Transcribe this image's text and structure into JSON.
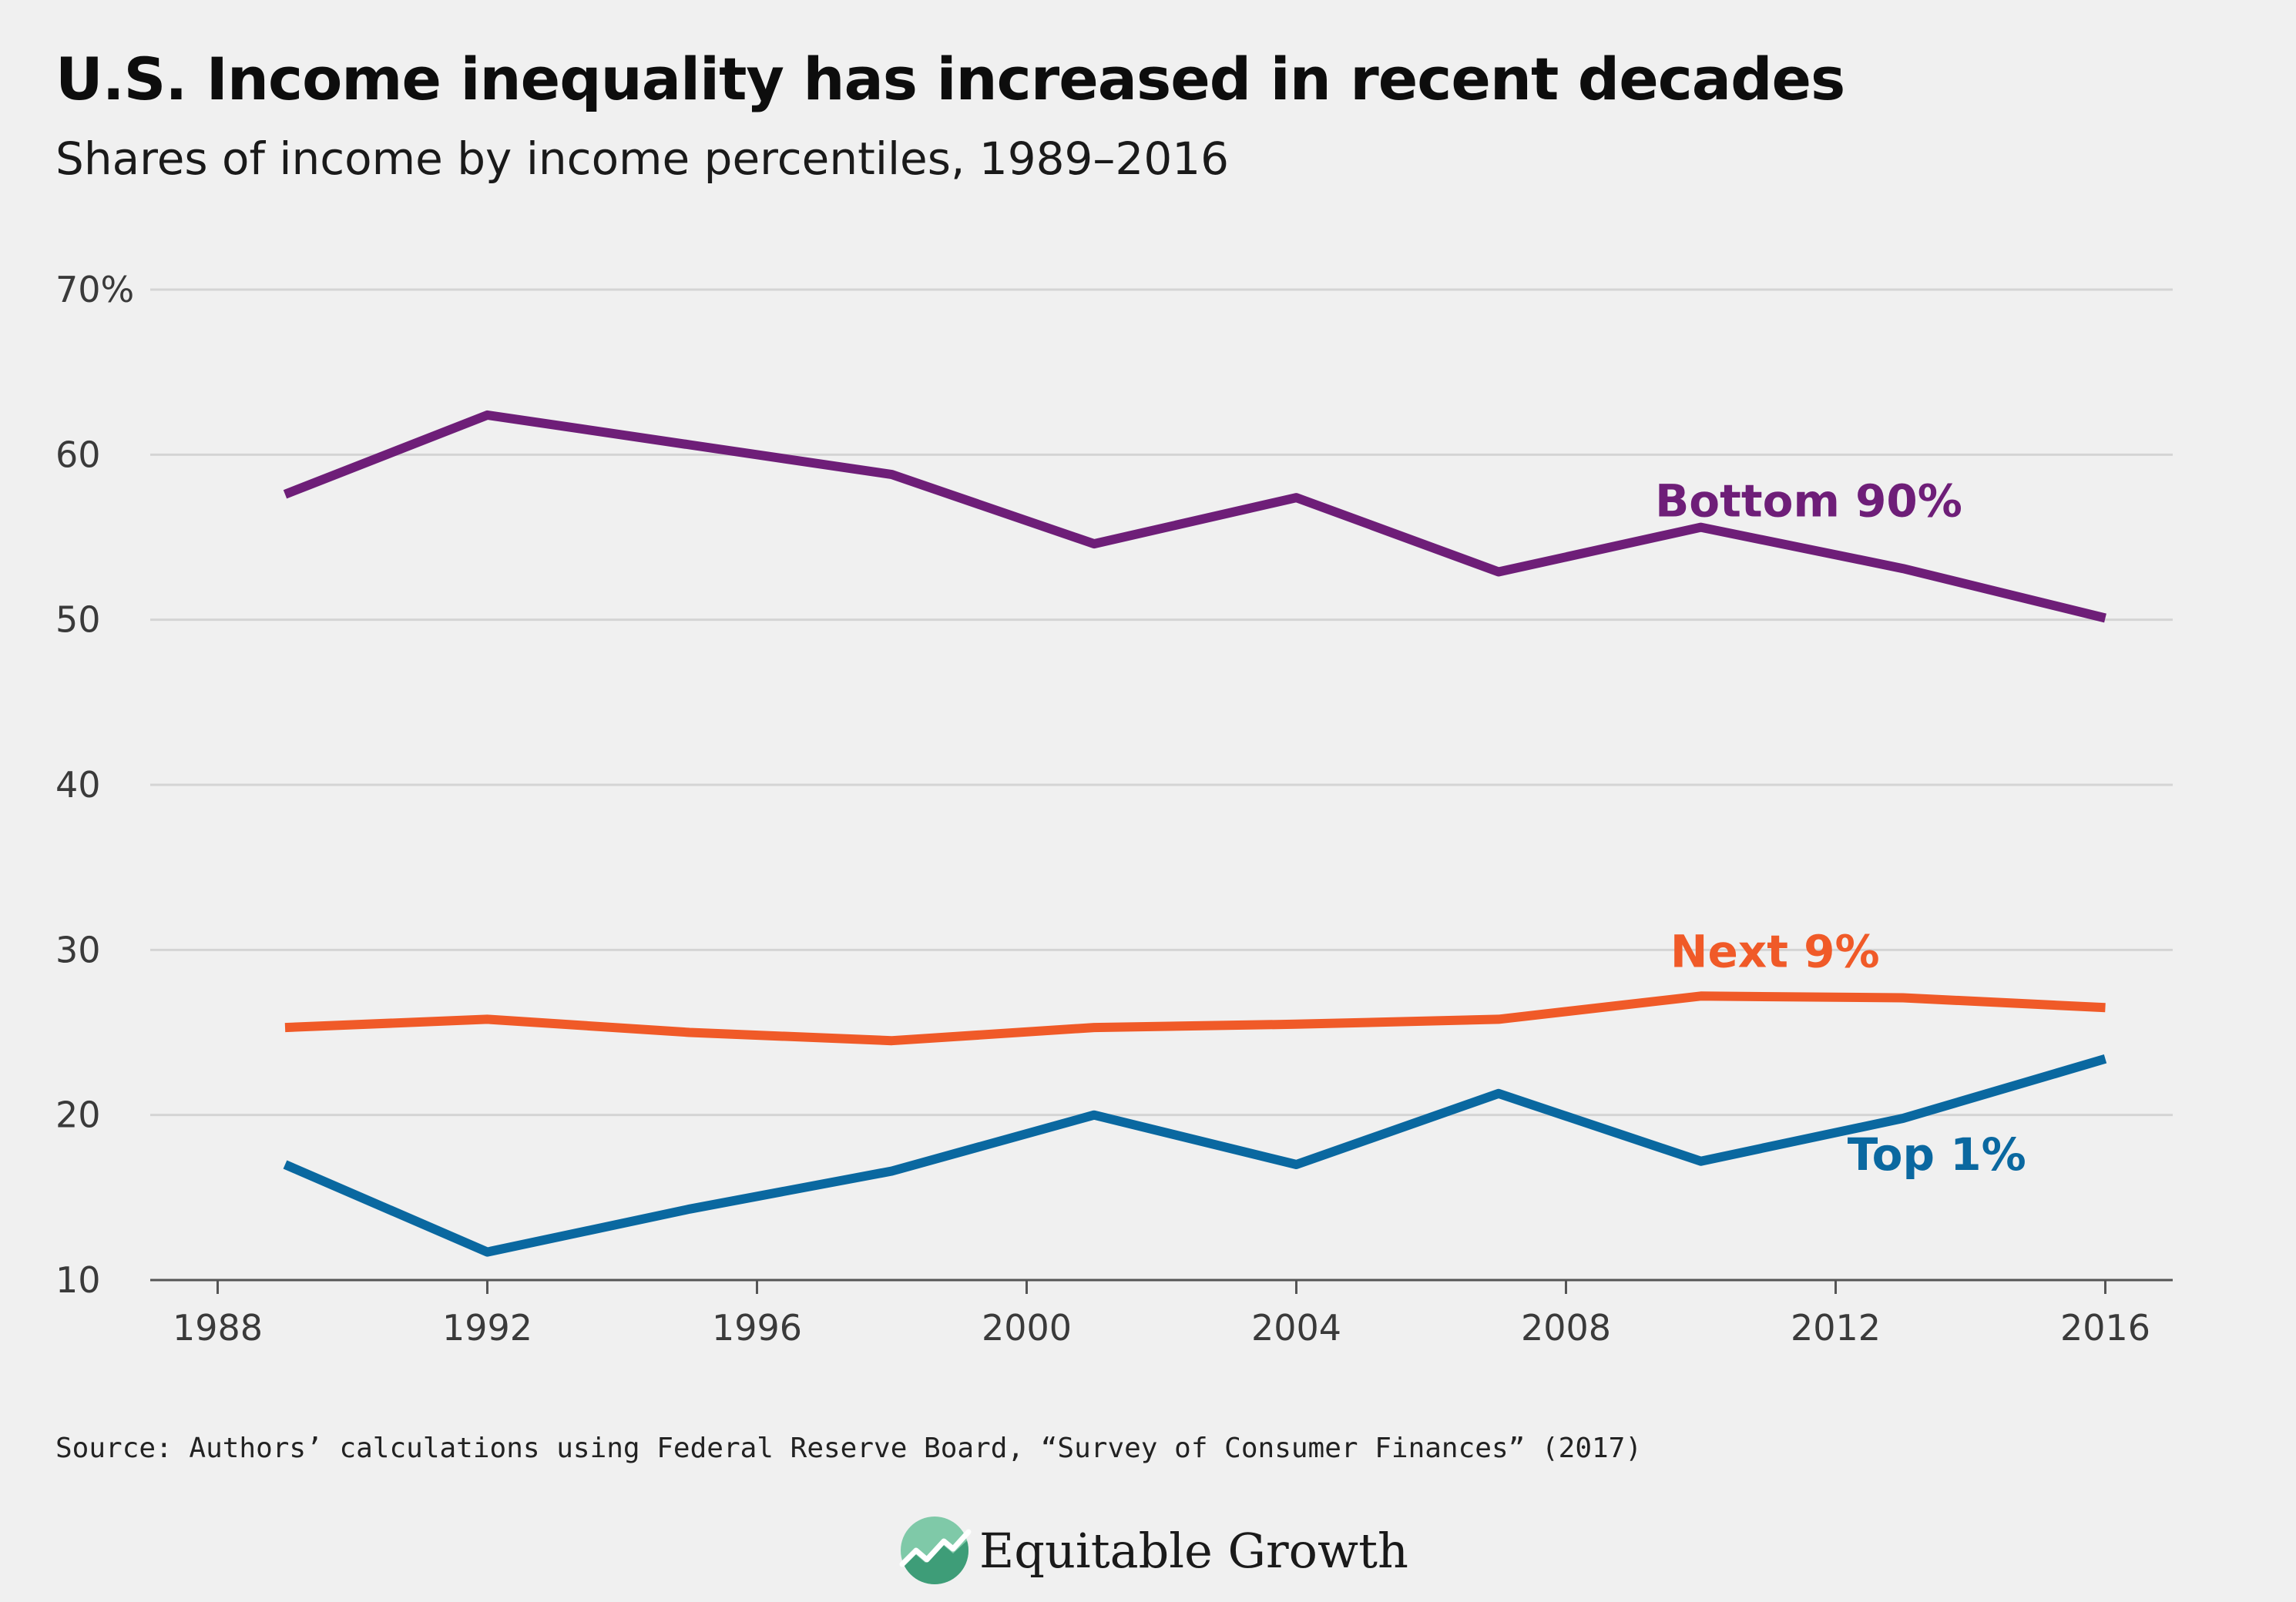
{
  "header": {
    "title": "U.S. Income inequality has increased in recent decades",
    "subtitle": "Shares of income by income percentiles, 1989–2016"
  },
  "footer": {
    "source": "Source: Authors’ calculations using Federal Reserve Board, “Survey of Consumer Finances” (2017)",
    "logo_text": "Equitable Growth"
  },
  "chart_data": {
    "type": "line",
    "title": "U.S. Income inequality has increased in recent decades",
    "subtitle": "Shares of income by income percentiles, 1989–2016",
    "xlabel": "",
    "ylabel": "",
    "xlim": [
      1987,
      2017
    ],
    "ylim": [
      10,
      70
    ],
    "x_ticks": [
      1988,
      1992,
      1996,
      2000,
      2004,
      2008,
      2012,
      2016
    ],
    "y_ticks": [
      10,
      20,
      30,
      40,
      50,
      60,
      70
    ],
    "y_tick_labels": [
      "10",
      "20",
      "30",
      "40",
      "50",
      "60",
      "70%"
    ],
    "grid": "horizontal",
    "x": [
      1989,
      1992,
      1995,
      1998,
      2001,
      2004,
      2007,
      2010,
      2013,
      2016
    ],
    "series": [
      {
        "name": "Bottom 90%",
        "color": "#6e1e78",
        "values": [
          57.6,
          62.4,
          60.6,
          58.8,
          54.6,
          57.4,
          52.9,
          55.6,
          53.1,
          50.1
        ]
      },
      {
        "name": "Next 9%",
        "color": "#f05a28",
        "values": [
          25.3,
          25.8,
          25.0,
          24.5,
          25.3,
          25.5,
          25.8,
          27.2,
          27.1,
          26.5
        ]
      },
      {
        "name": "Top 1%",
        "color": "#0a68a0",
        "values": [
          17.0,
          11.7,
          14.3,
          16.6,
          20.0,
          17.0,
          21.3,
          17.2,
          19.8,
          23.4
        ]
      }
    ]
  }
}
